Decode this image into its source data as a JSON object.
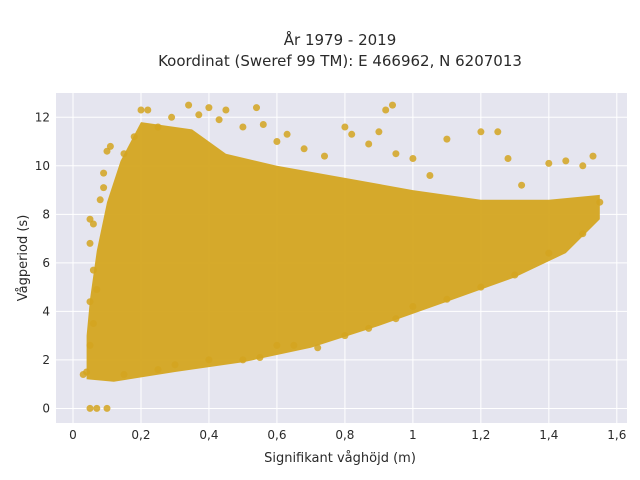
{
  "chart_data": {
    "type": "scatter",
    "title_line1": "År 1979 - 2019",
    "title_line2": "Koordinat (Sweref 99 TM): E 466962, N 6207013",
    "xlabel": "Signifikant våghöjd (m)",
    "ylabel": "Vågperiod (s)",
    "xlim": [
      -0.05,
      1.63
    ],
    "ylim": [
      -0.6,
      13.0
    ],
    "x_ticks": [
      0,
      0.2,
      0.4,
      0.6,
      0.8,
      1,
      1.2,
      1.4,
      1.6
    ],
    "x_tick_labels": [
      "0",
      "0,2",
      "0,4",
      "0,6",
      "0,8",
      "1",
      "1,2",
      "1,4",
      "1,6"
    ],
    "y_ticks": [
      0,
      2,
      4,
      6,
      8,
      10,
      12
    ],
    "y_tick_labels": [
      "0",
      "2",
      "4",
      "6",
      "8",
      "10",
      "12"
    ],
    "grid": true,
    "colors": {
      "background": "#e5e5ef",
      "grid": "#ffffff",
      "marker": "#d4a520"
    },
    "series": [
      {
        "points": [
          [
            0.05,
            0.0
          ],
          [
            0.07,
            0.0
          ],
          [
            0.1,
            0.0
          ],
          [
            0.03,
            1.4
          ],
          [
            0.04,
            1.5
          ],
          [
            0.05,
            2.6
          ],
          [
            0.06,
            3.5
          ],
          [
            0.05,
            4.4
          ],
          [
            0.07,
            4.9
          ],
          [
            0.06,
            5.7
          ],
          [
            0.05,
            6.8
          ],
          [
            0.06,
            7.6
          ],
          [
            0.05,
            7.8
          ],
          [
            0.08,
            8.6
          ],
          [
            0.09,
            9.1
          ],
          [
            0.09,
            9.7
          ],
          [
            0.1,
            10.6
          ],
          [
            0.11,
            10.8
          ],
          [
            0.15,
            10.5
          ],
          [
            0.18,
            11.2
          ],
          [
            0.2,
            12.3
          ],
          [
            0.22,
            12.3
          ],
          [
            0.25,
            11.6
          ],
          [
            0.29,
            12.0
          ],
          [
            0.34,
            12.5
          ],
          [
            0.37,
            12.1
          ],
          [
            0.4,
            12.4
          ],
          [
            0.43,
            11.9
          ],
          [
            0.45,
            12.3
          ],
          [
            0.5,
            11.6
          ],
          [
            0.54,
            12.4
          ],
          [
            0.56,
            11.7
          ],
          [
            0.6,
            11.0
          ],
          [
            0.63,
            11.3
          ],
          [
            0.68,
            10.7
          ],
          [
            0.74,
            10.4
          ],
          [
            0.8,
            11.6
          ],
          [
            0.82,
            11.3
          ],
          [
            0.87,
            10.9
          ],
          [
            0.9,
            11.4
          ],
          [
            0.95,
            10.5
          ],
          [
            1.0,
            10.3
          ],
          [
            1.05,
            9.6
          ],
          [
            1.1,
            11.1
          ],
          [
            1.2,
            11.4
          ],
          [
            1.25,
            11.4
          ],
          [
            1.28,
            10.3
          ],
          [
            1.32,
            9.2
          ],
          [
            1.4,
            10.1
          ],
          [
            1.45,
            10.2
          ],
          [
            1.5,
            10.0
          ],
          [
            1.53,
            10.4
          ],
          [
            0.92,
            12.3
          ],
          [
            0.94,
            12.5
          ],
          [
            0.15,
            1.4
          ],
          [
            0.25,
            1.6
          ],
          [
            0.3,
            1.8
          ],
          [
            0.4,
            2.0
          ],
          [
            0.5,
            2.0
          ],
          [
            0.55,
            2.1
          ],
          [
            0.6,
            2.6
          ],
          [
            0.65,
            2.6
          ],
          [
            0.72,
            2.5
          ],
          [
            0.8,
            3.0
          ],
          [
            0.87,
            3.3
          ],
          [
            0.95,
            3.7
          ],
          [
            1.0,
            4.2
          ],
          [
            1.1,
            4.5
          ],
          [
            1.2,
            5.0
          ],
          [
            1.3,
            5.5
          ],
          [
            1.4,
            6.4
          ],
          [
            1.5,
            7.2
          ],
          [
            1.55,
            8.5
          ]
        ]
      }
    ]
  }
}
